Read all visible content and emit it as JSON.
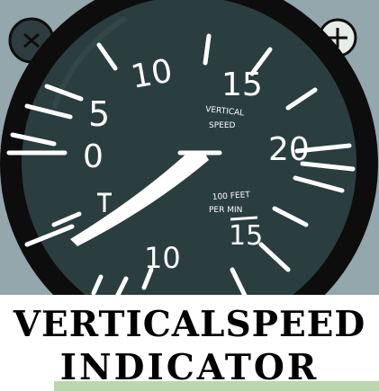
{
  "gauge": {
    "scale_labels": {
      "top_left_10": "10",
      "five": "5",
      "zero": "0",
      "top_15": "15",
      "right_20": "20",
      "bottom_10": "10",
      "bottom_15": "15"
    },
    "center_label_line1": "VERTICAL",
    "center_label_line2": "SPEED",
    "unit_line1": "100 FEET",
    "unit_line2": "PER MIN",
    "screw_left_icon": "screw-x-icon",
    "screw_right_icon": "screw-plus-icon"
  },
  "banner": {
    "line1": "VERTICALSPEED",
    "line2": "INDICATOR"
  },
  "colors": {
    "background": "#93a7ad",
    "dial_face": "#2a3d3f",
    "bezel": "#0d0d0d",
    "markings": "#ffffff"
  }
}
